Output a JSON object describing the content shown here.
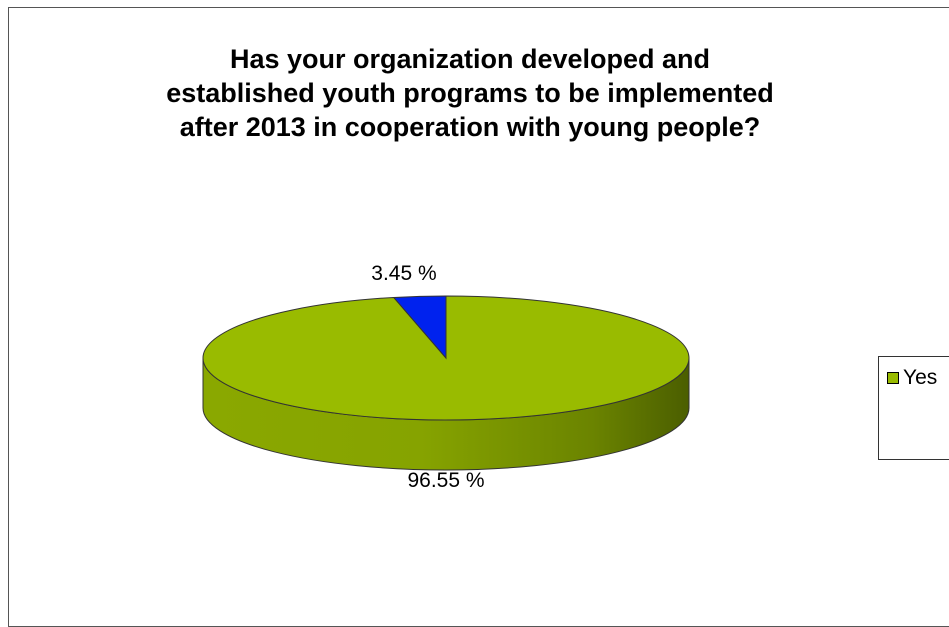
{
  "chart_data": {
    "type": "pie",
    "title": "Has your organization developed and established youth programs to be implemented after 2013 in cooperation with young people?",
    "slices": [
      {
        "label": "Yes",
        "value": 96.55,
        "value_label": "96.55 %",
        "color": "#99bb00"
      },
      {
        "label": "",
        "value": 3.45,
        "value_label": "3.45 %",
        "color": "#0022ee"
      }
    ],
    "legend": {
      "entries": [
        "Yes"
      ],
      "placement": "right"
    },
    "three_d": true
  }
}
